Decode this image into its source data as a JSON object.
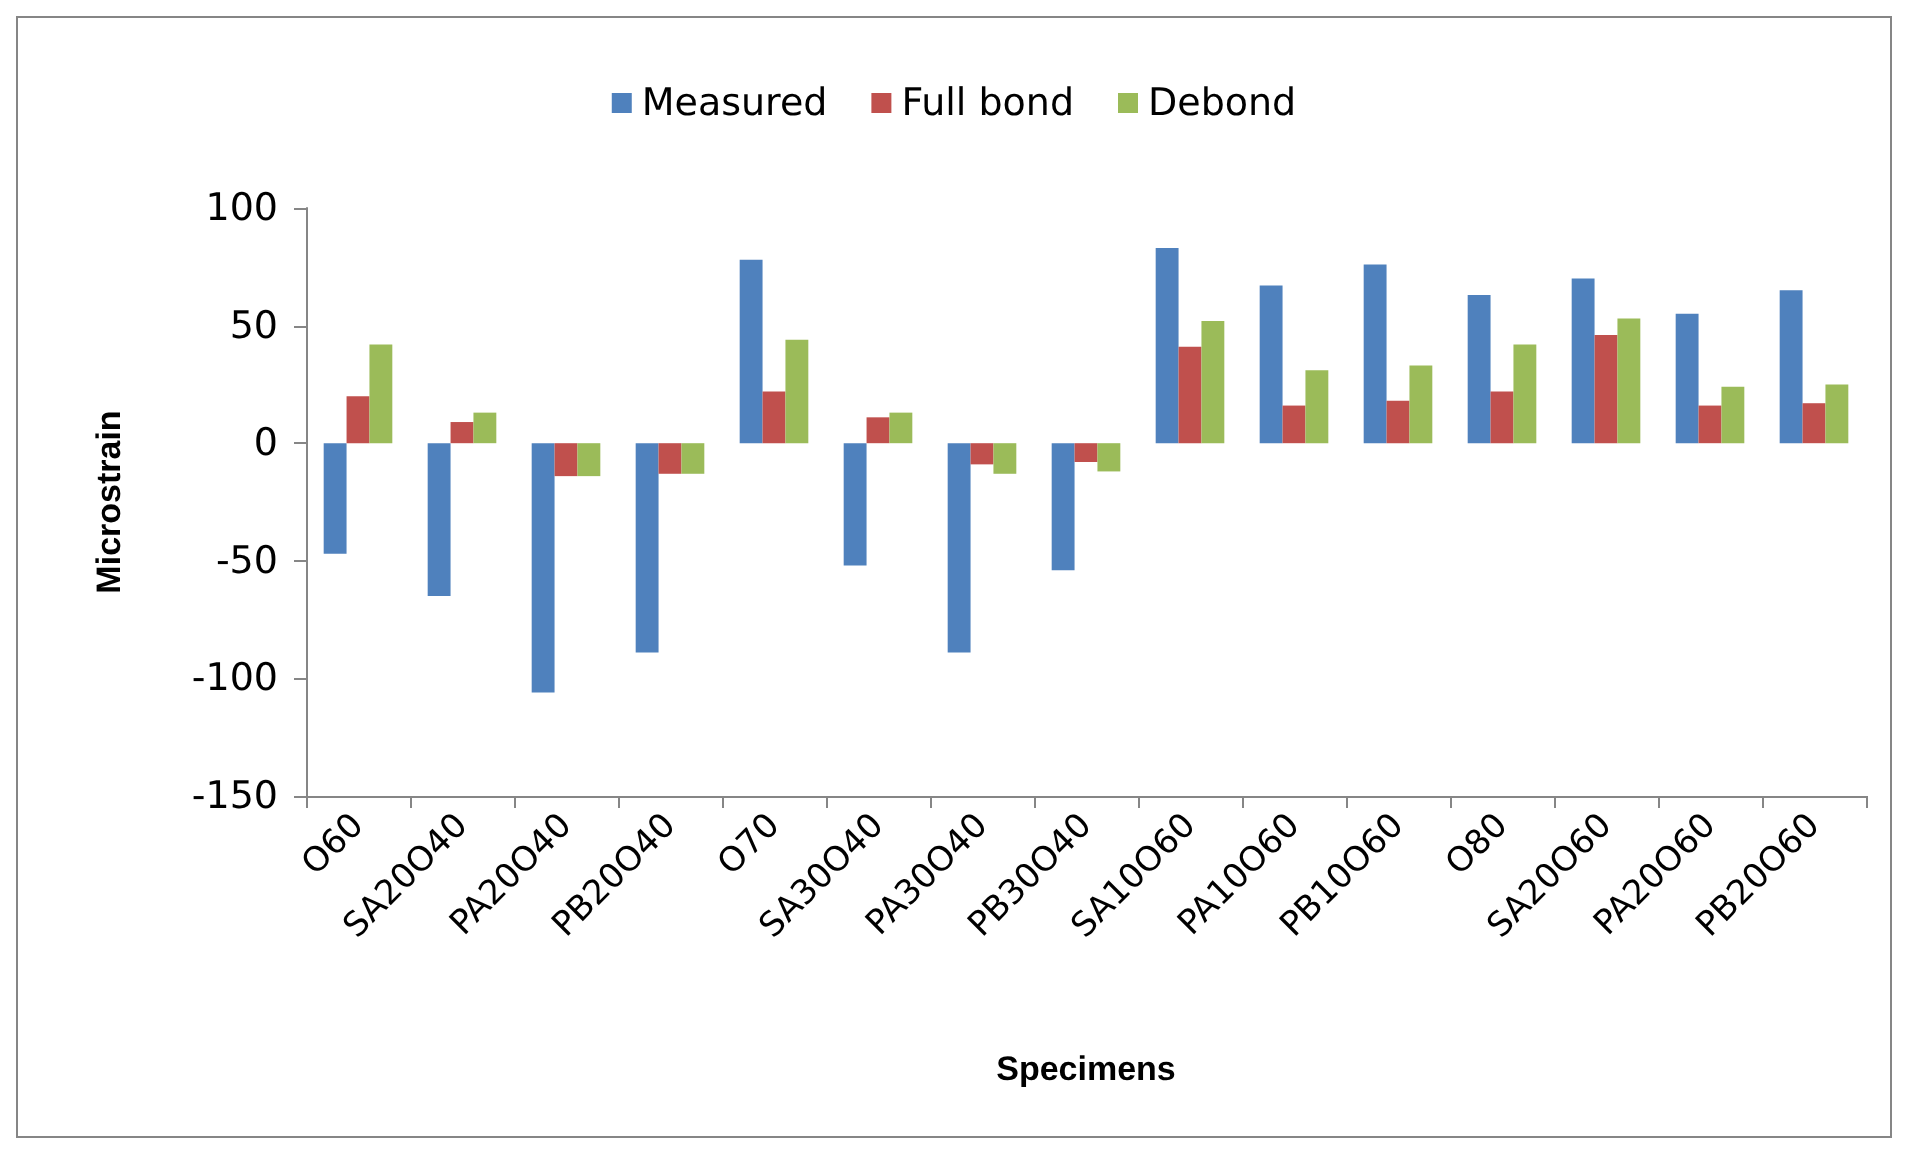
{
  "chart_data": {
    "type": "bar",
    "xlabel": "Specimens",
    "ylabel": "Microstrain",
    "categories": [
      "O60",
      "SA20O40",
      "PA20O40",
      "PB20O40",
      "O70",
      "SA30O40",
      "PA30O40",
      "PB30O40",
      "SA10O60",
      "PA10O60",
      "PB10O60",
      "O80",
      "SA20O60",
      "PA20O60",
      "PB20O60"
    ],
    "series": [
      {
        "name": "Measured",
        "color": "#4f81bd",
        "values": [
          -47,
          -65,
          -106,
          -89,
          78,
          -52,
          -89,
          -54,
          83,
          67,
          76,
          63,
          70,
          55,
          65
        ]
      },
      {
        "name": "Full bond",
        "color": "#c0504d",
        "values": [
          20,
          9,
          -14,
          -13,
          22,
          11,
          -9,
          -8,
          41,
          16,
          18,
          22,
          46,
          16,
          17
        ]
      },
      {
        "name": "Debond",
        "color": "#9bbb59",
        "values": [
          42,
          13,
          -14,
          -13,
          44,
          13,
          -13,
          -12,
          52,
          31,
          33,
          42,
          53,
          24,
          25
        ]
      }
    ],
    "ylim": [
      -150,
      100
    ],
    "yticks": [
      -150,
      -100,
      -50,
      0,
      50,
      100
    ],
    "grid": false,
    "legend": "top"
  }
}
